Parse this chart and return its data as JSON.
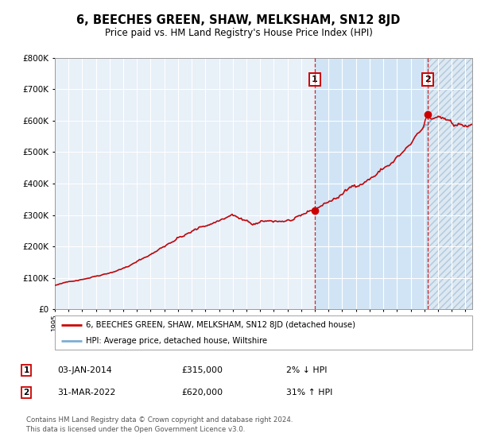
{
  "title": "6, BEECHES GREEN, SHAW, MELKSHAM, SN12 8JD",
  "subtitle": "Price paid vs. HM Land Registry's House Price Index (HPI)",
  "legend_line1": "6, BEECHES GREEN, SHAW, MELKSHAM, SN12 8JD (detached house)",
  "legend_line2": "HPI: Average price, detached house, Wiltshire",
  "ann1_date_str": "03-JAN-2014",
  "ann1_price_str": "£315,000",
  "ann1_hpi_str": "2% ↓ HPI",
  "ann1_price": 315000,
  "ann1_year": 2014.0,
  "ann2_date_str": "31-MAR-2022",
  "ann2_price_str": "£620,000",
  "ann2_hpi_str": "31% ↑ HPI",
  "ann2_price": 620000,
  "ann2_year": 2022.25,
  "footer": "Contains HM Land Registry data © Crown copyright and database right 2024.\nThis data is licensed under the Open Government Licence v3.0.",
  "hpi_line_color": "#7bafd4",
  "price_line_color": "#cc0000",
  "dot_color": "#cc0000",
  "chart_bg_color": "#e8f0f8",
  "shaded_color": "#d0e4f5",
  "ylim": [
    0,
    800000
  ],
  "xmin": 1995,
  "xmax": 2025.5,
  "dashed_line_color": "#cc0000",
  "grid_color": "#ffffff",
  "ann_box_edge": "#cc0000"
}
